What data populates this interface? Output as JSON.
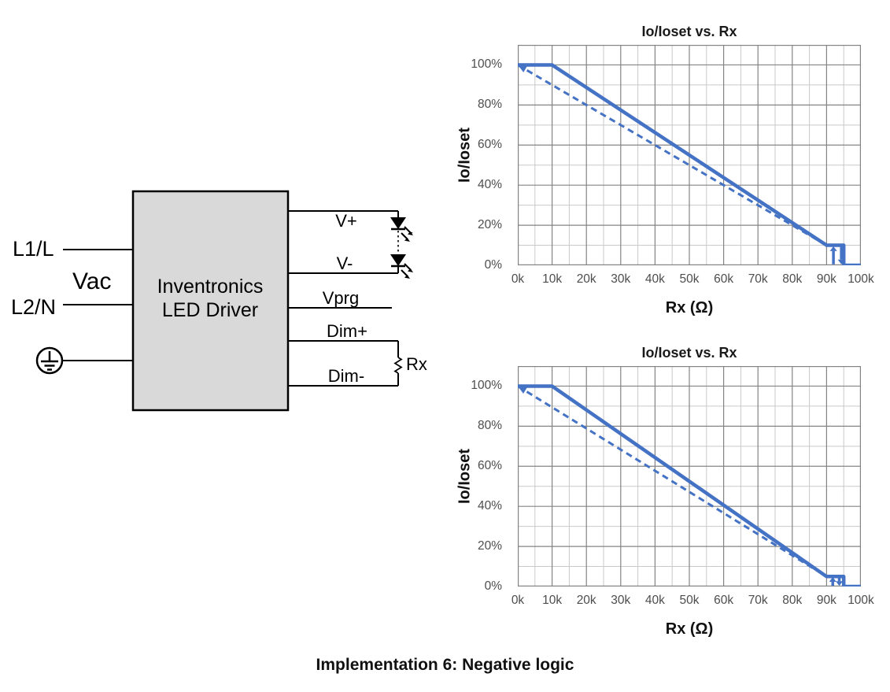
{
  "caption": "Implementation 6: Negative logic",
  "circuit": {
    "input_labels": {
      "l1": "L1/L",
      "vac": "Vac",
      "l2": "L2/N"
    },
    "block": {
      "line1": "Inventronics",
      "line2": "LED Driver"
    },
    "output_labels": {
      "v_plus": "V+",
      "v_minus": "V-",
      "vprg": "Vprg",
      "dim_plus": "Dim+",
      "dim_minus": "Dim-",
      "rx": "Rx"
    }
  },
  "colors": {
    "curve_blue": "#4472c4",
    "grid_major": "#848484",
    "grid_minor": "#c9c9c9",
    "block_fill": "#d9d9d9",
    "tick_text": "#4d4d4d"
  },
  "chart_data": [
    {
      "type": "line",
      "title": "Io/Ioset vs. Rx",
      "xlabel": "Rx (Ω)",
      "ylabel": "Io/Ioset",
      "xlim": [
        0,
        100000
      ],
      "ylim": [
        0,
        110
      ],
      "x_tick_values": [
        0,
        10000,
        20000,
        30000,
        40000,
        50000,
        60000,
        70000,
        80000,
        90000,
        100000
      ],
      "x_tick_labels": [
        "0k",
        "10k",
        "20k",
        "30k",
        "40k",
        "50k",
        "60k",
        "70k",
        "80k",
        "90k",
        "100k"
      ],
      "y_tick_values": [
        0,
        20,
        40,
        60,
        80,
        100
      ],
      "y_tick_labels": [
        "0%",
        "20%",
        "40%",
        "60%",
        "80%",
        "100%"
      ],
      "grid": {
        "on": true,
        "minor_x": 5000,
        "minor_y": 10,
        "major_x": 10000,
        "major_y": 20
      },
      "legend": "none",
      "series": [
        {
          "name": "dimming curve (solid)",
          "style": "solid",
          "width": 4.5,
          "points": [
            [
              0,
              100
            ],
            [
              10000,
              100
            ],
            [
              90000,
              10
            ],
            [
              95000,
              10
            ],
            [
              95000,
              0
            ],
            [
              100000,
              0
            ]
          ]
        },
        {
          "name": "tolerance curve (dashed)",
          "style": "dashed",
          "width": 3,
          "start_arrow": true,
          "points": [
            [
              0,
              100
            ],
            [
              90000,
              10
            ]
          ]
        }
      ],
      "hysteresis_arrows": [
        {
          "x": 92000,
          "from": 0.5,
          "to": 9.5
        },
        {
          "x": 94300,
          "from": 9.5,
          "to": 0.5
        }
      ]
    },
    {
      "type": "line",
      "title": "Io/Ioset vs. Rx",
      "xlabel": "Rx (Ω)",
      "ylabel": "Io/Ioset",
      "xlim": [
        0,
        100000
      ],
      "ylim": [
        0,
        110
      ],
      "x_tick_values": [
        0,
        10000,
        20000,
        30000,
        40000,
        50000,
        60000,
        70000,
        80000,
        90000,
        100000
      ],
      "x_tick_labels": [
        "0k",
        "10k",
        "20k",
        "30k",
        "40k",
        "50k",
        "60k",
        "70k",
        "80k",
        "90k",
        "100k"
      ],
      "y_tick_values": [
        0,
        20,
        40,
        60,
        80,
        100
      ],
      "y_tick_labels": [
        "0%",
        "20%",
        "40%",
        "60%",
        "80%",
        "100%"
      ],
      "grid": {
        "on": true,
        "minor_x": 5000,
        "minor_y": 10,
        "major_x": 10000,
        "major_y": 20
      },
      "legend": "none",
      "series": [
        {
          "name": "dimming curve (solid)",
          "style": "solid",
          "width": 4.5,
          "points": [
            [
              0,
              100
            ],
            [
              10000,
              100
            ],
            [
              90000,
              5
            ],
            [
              95000,
              5
            ],
            [
              95000,
              0
            ],
            [
              100000,
              0
            ]
          ]
        },
        {
          "name": "tolerance curve (dashed)",
          "style": "dashed",
          "width": 3,
          "start_arrow": true,
          "points": [
            [
              0,
              100
            ],
            [
              90000,
              5
            ]
          ]
        }
      ],
      "hysteresis_arrows": [
        {
          "x": 91800,
          "from": 0.3,
          "to": 4.7
        },
        {
          "x": 93700,
          "from": 4.7,
          "to": 0.3
        }
      ]
    }
  ]
}
